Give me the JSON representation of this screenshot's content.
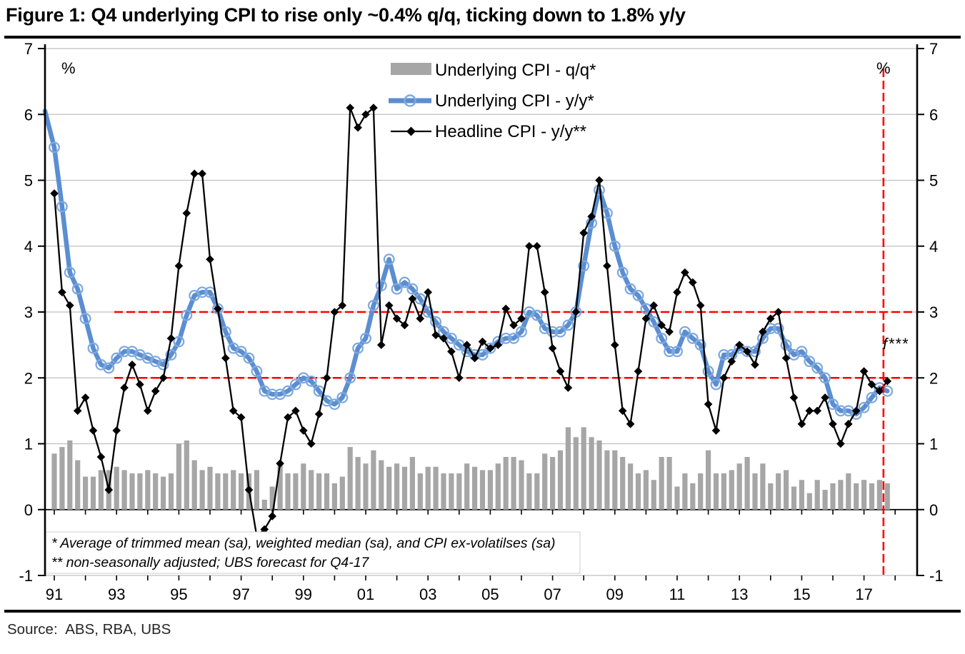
{
  "title": "Figure 1: Q4 underlying CPI to rise only ~0.4% q/q, ticking down to 1.8% y/y",
  "source": {
    "label": "Source:",
    "value": "ABS, RBA, UBS"
  },
  "axis": {
    "left_unit": "%",
    "right_unit": "%",
    "y_tick_labels": [
      "7",
      "6",
      "5",
      "4",
      "3",
      "2",
      "1",
      "0",
      "-1"
    ],
    "y_tick_values": [
      7,
      6,
      5,
      4,
      3,
      2,
      1,
      0,
      -1
    ],
    "x_tick_labels": [
      "91",
      "93",
      "95",
      "97",
      "99",
      "01",
      "03",
      "05",
      "07",
      "09",
      "11",
      "13",
      "15",
      "17"
    ]
  },
  "legend": [
    {
      "label": "Underlying CPI - q/q*",
      "type": "bar",
      "color": "#A6A6A6"
    },
    {
      "label": "Underlying CPI - y/y*",
      "type": "line-circle",
      "color": "#5B8ED1"
    },
    {
      "label": "Headline CPI - y/y**",
      "type": "line-diamond",
      "color": "#000000"
    }
  ],
  "annotations": {
    "forecast_label": "f***",
    "footnote1": "* Average of trimmed mean (sa), weighted median (sa), and CPI ex-volatilses (sa)",
    "footnote2": "** non-seasonally adjusted; UBS forecast for Q4-17"
  },
  "colors": {
    "bar": "#A6A6A6",
    "underlying_line": "#5B8ED1",
    "underlying_marker": "#7FA9DE",
    "headline_line": "#000000",
    "grid": "#BFBFBF",
    "target_band": "#FF0000",
    "forecast_line": "#FF0000"
  },
  "chart_data": {
    "type": "combo",
    "unit": "%",
    "frequency": "quarterly",
    "x_start": "1991Q1",
    "x_end": "2017Q4",
    "ylim": [
      -1,
      7
    ],
    "grid": true,
    "legend_position": "top-center",
    "target_band_values": [
      2,
      3
    ],
    "forecast_divider_after_index": 106,
    "series": [
      {
        "name": "Underlying CPI - q/q*",
        "type": "bar",
        "values": [
          0.85,
          0.95,
          1.05,
          0.75,
          0.5,
          0.5,
          0.6,
          0.6,
          0.65,
          0.6,
          0.55,
          0.55,
          0.6,
          0.55,
          0.5,
          0.55,
          1.0,
          1.05,
          0.75,
          0.6,
          0.65,
          0.55,
          0.55,
          0.6,
          0.55,
          0.55,
          0.6,
          0.15,
          0.35,
          0.7,
          0.55,
          0.55,
          0.7,
          0.6,
          0.55,
          0.55,
          0.4,
          0.5,
          0.95,
          0.8,
          0.7,
          0.9,
          0.75,
          0.65,
          0.7,
          0.65,
          0.8,
          0.55,
          0.65,
          0.65,
          0.55,
          0.55,
          0.55,
          0.7,
          0.65,
          0.6,
          0.6,
          0.7,
          0.8,
          0.8,
          0.75,
          0.55,
          0.55,
          0.85,
          0.8,
          0.9,
          1.25,
          1.1,
          1.25,
          1.1,
          1.05,
          0.9,
          0.9,
          0.8,
          0.7,
          0.55,
          0.6,
          0.45,
          0.8,
          0.8,
          0.35,
          0.55,
          0.4,
          0.55,
          0.9,
          0.55,
          0.55,
          0.6,
          0.7,
          0.8,
          0.55,
          0.7,
          0.4,
          0.55,
          0.6,
          0.35,
          0.45,
          0.25,
          0.45,
          0.3,
          0.4,
          0.45,
          0.55,
          0.4,
          0.45,
          0.4,
          0.45,
          0.4
        ]
      },
      {
        "name": "Underlying CPI - y/y*",
        "type": "line",
        "marker": "circle",
        "lead_in_value": 6.05,
        "values": [
          5.5,
          4.6,
          3.6,
          3.35,
          2.9,
          2.45,
          2.2,
          2.15,
          2.3,
          2.4,
          2.4,
          2.35,
          2.3,
          2.25,
          2.2,
          2.35,
          2.55,
          2.95,
          3.25,
          3.3,
          3.3,
          3.05,
          2.7,
          2.45,
          2.4,
          2.3,
          2.1,
          1.8,
          1.75,
          1.75,
          1.8,
          1.9,
          2.0,
          1.95,
          1.8,
          1.65,
          1.6,
          1.7,
          2.0,
          2.45,
          2.6,
          3.1,
          3.4,
          3.8,
          3.35,
          3.45,
          3.35,
          3.2,
          3.0,
          2.85,
          2.7,
          2.6,
          2.5,
          2.4,
          2.35,
          2.35,
          2.45,
          2.55,
          2.6,
          2.6,
          2.7,
          3.0,
          2.95,
          2.75,
          2.7,
          2.7,
          2.8,
          3.0,
          3.7,
          4.35,
          4.85,
          4.5,
          4.0,
          3.6,
          3.35,
          3.25,
          3.05,
          2.85,
          2.6,
          2.4,
          2.4,
          2.7,
          2.6,
          2.5,
          2.1,
          1.9,
          2.35,
          2.35,
          2.45,
          2.4,
          2.4,
          2.6,
          2.75,
          2.75,
          2.5,
          2.35,
          2.4,
          2.25,
          2.15,
          2.0,
          1.6,
          1.5,
          1.5,
          1.45,
          1.55,
          1.7,
          1.85,
          1.8
        ]
      },
      {
        "name": "Headline CPI - y/y**",
        "type": "line",
        "marker": "diamond",
        "values": [
          4.8,
          3.3,
          3.1,
          1.5,
          1.7,
          1.2,
          0.8,
          0.3,
          1.2,
          1.85,
          2.2,
          1.9,
          1.5,
          1.8,
          2.0,
          2.6,
          3.7,
          4.5,
          5.1,
          5.1,
          3.8,
          3.05,
          2.3,
          1.5,
          1.4,
          0.3,
          -0.4,
          -0.3,
          -0.1,
          0.7,
          1.4,
          1.5,
          1.2,
          1.0,
          1.45,
          2.0,
          3.0,
          3.1,
          6.1,
          5.8,
          6.0,
          6.1,
          2.5,
          3.1,
          2.9,
          2.8,
          3.2,
          2.9,
          3.3,
          2.65,
          2.6,
          2.4,
          2.0,
          2.5,
          2.3,
          2.55,
          2.45,
          2.5,
          3.05,
          2.8,
          2.9,
          4.0,
          4.0,
          3.3,
          2.45,
          2.1,
          1.85,
          3.0,
          4.2,
          4.45,
          5.0,
          3.7,
          2.5,
          1.5,
          1.3,
          2.1,
          2.9,
          3.1,
          2.8,
          2.7,
          3.3,
          3.6,
          3.45,
          3.1,
          1.6,
          1.2,
          2.0,
          2.25,
          2.5,
          2.4,
          2.2,
          2.7,
          2.9,
          3.0,
          2.3,
          1.7,
          1.3,
          1.5,
          1.5,
          1.7,
          1.3,
          1.0,
          1.3,
          1.5,
          2.1,
          1.9,
          1.8,
          1.95
        ]
      }
    ]
  }
}
